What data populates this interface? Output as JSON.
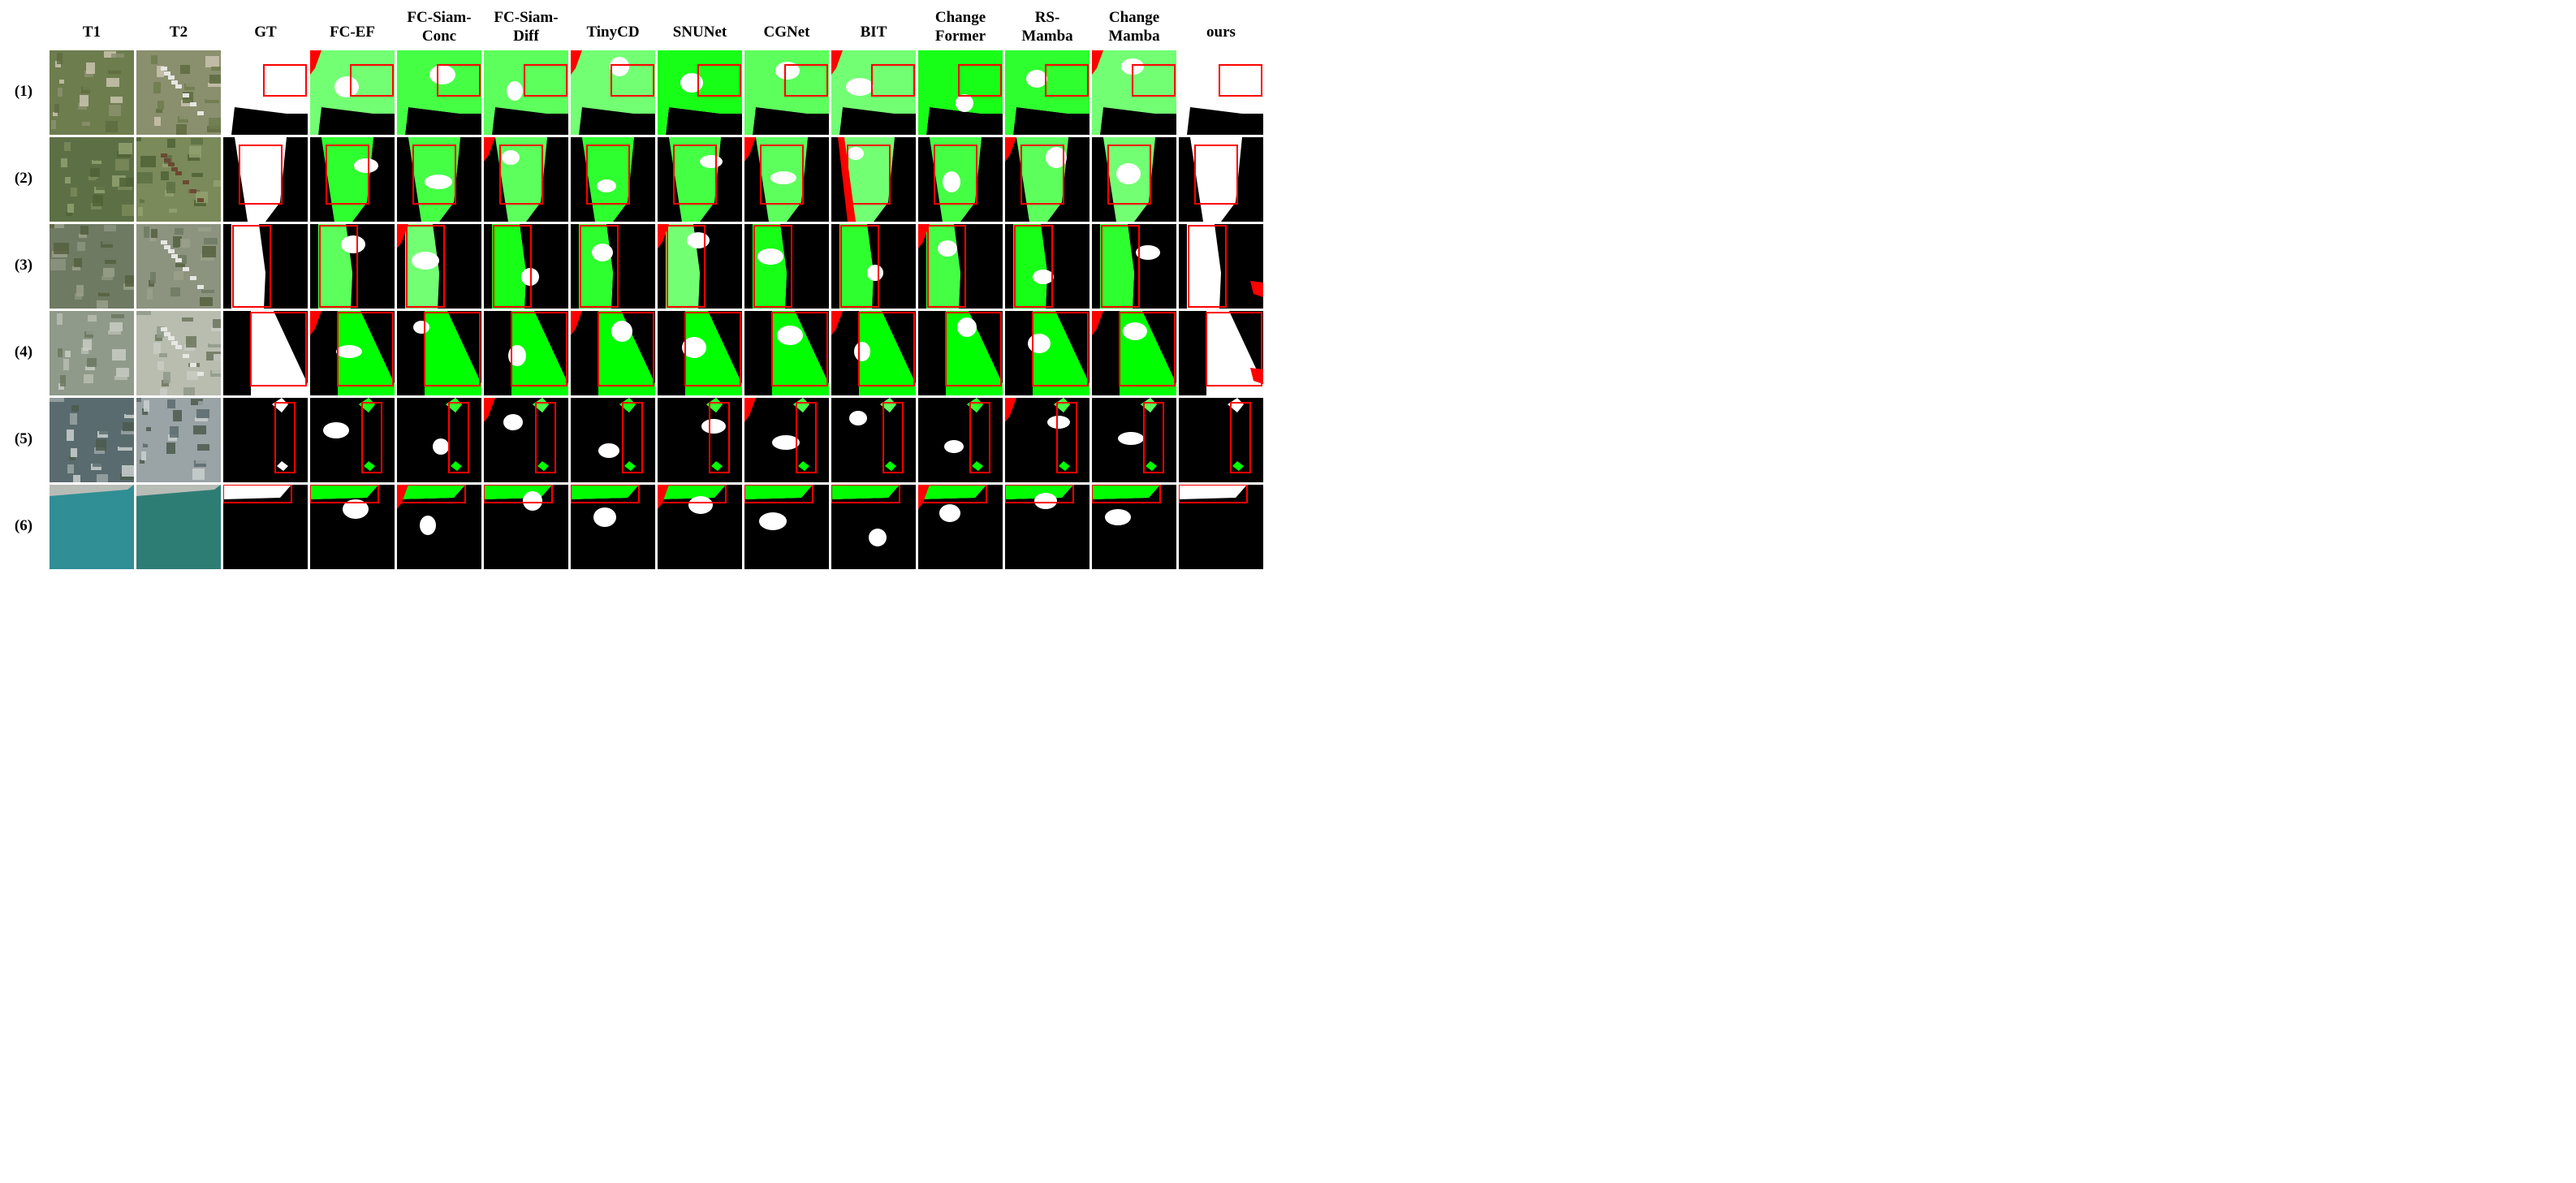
{
  "columns": [
    "T1",
    "T2",
    "GT",
    "FC-EF",
    "FC-Siam-\nConc",
    "FC-Siam-\nDiff",
    "TinyCD",
    "SNUNet",
    "CGNet",
    "BIT",
    "Change\nFormer",
    "RS-\nMamba",
    "Change\nMamba",
    "ours"
  ],
  "rows": [
    "(1)",
    "(2)",
    "(3)",
    "(4)",
    "(5)",
    "(6)"
  ],
  "legend_colors": {
    "true_positive": "#ffffff",
    "true_negative": "#000000",
    "false_negative": "#00ff00",
    "false_positive": "#ff0000",
    "highlight_box": "#ff0000"
  }
}
